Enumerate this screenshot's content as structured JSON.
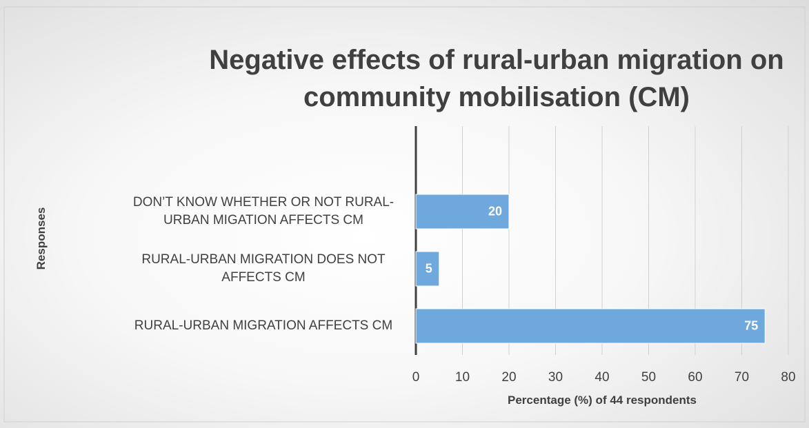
{
  "chart_data": {
    "type": "bar",
    "orientation": "horizontal",
    "title": "Negative effects of rural-urban migration on community mobilisation (CM)",
    "x_label": "Percentage (%) of 44 respondents",
    "y_label": "Responses",
    "categories": [
      "DON’T KNOW WHETHER OR NOT RURAL-URBAN MIGATION AFFECTS CM",
      "RURAL-URBAN MIGRATION DOES NOT AFFECTS CM",
      "RURAL-URBAN MIGRATION AFFECTS CM"
    ],
    "values": [
      20,
      5,
      75
    ],
    "color": "#6fa8dc",
    "xlim": [
      0,
      80
    ],
    "xticks": [
      0,
      10,
      20,
      30,
      40,
      50,
      60,
      70,
      80
    ],
    "grid": true
  }
}
